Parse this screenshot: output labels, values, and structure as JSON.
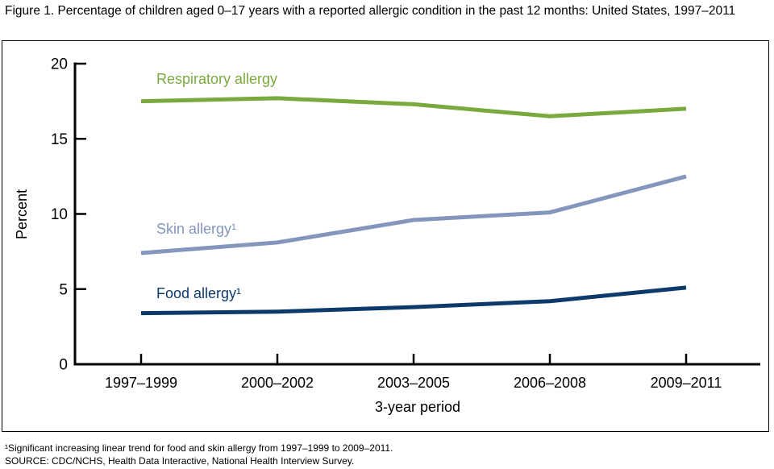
{
  "title": "Figure 1. Percentage of children aged 0–17 years with a reported allergic condition in the past 12 months: United States, 1997–2011",
  "footnotes": [
    "¹Significant increasing linear trend for food and skin allergy from 1997–1999 to 2009–2011.",
    "SOURCE: CDC/NCHS, Health Data Interactive, National Health Interview Survey."
  ],
  "colors": {
    "respiratory": "#7aa93e",
    "skin": "#8496bd",
    "food": "#0d3a6b",
    "axis": "#000000"
  },
  "chart_data": {
    "type": "line",
    "title": "Percentage of children aged 0–17 years with a reported allergic condition in the past 12 months: United States, 1997–2011",
    "categories": [
      "1997–1999",
      "2000–2002",
      "2003–2005",
      "2006–2008",
      "2009–2011"
    ],
    "series": [
      {
        "name": "Respiratory allergy",
        "label": "Respiratory allergy",
        "color": "#7aa93e",
        "values": [
          17.5,
          17.7,
          17.3,
          16.5,
          17.0
        ]
      },
      {
        "name": "Skin allergy",
        "label": "Skin allergy¹",
        "color": "#8496bd",
        "values": [
          7.4,
          8.1,
          9.6,
          10.1,
          12.5
        ]
      },
      {
        "name": "Food allergy",
        "label": "Food allergy¹",
        "color": "#0d3a6b",
        "values": [
          3.4,
          3.5,
          3.8,
          4.2,
          5.1
        ]
      }
    ],
    "xlabel": "3-year period",
    "ylabel": "Percent",
    "ylim": [
      0,
      20
    ],
    "yticks": [
      0,
      5,
      10,
      15,
      20
    ],
    "grid": false,
    "legend_position": "inline-labels"
  }
}
